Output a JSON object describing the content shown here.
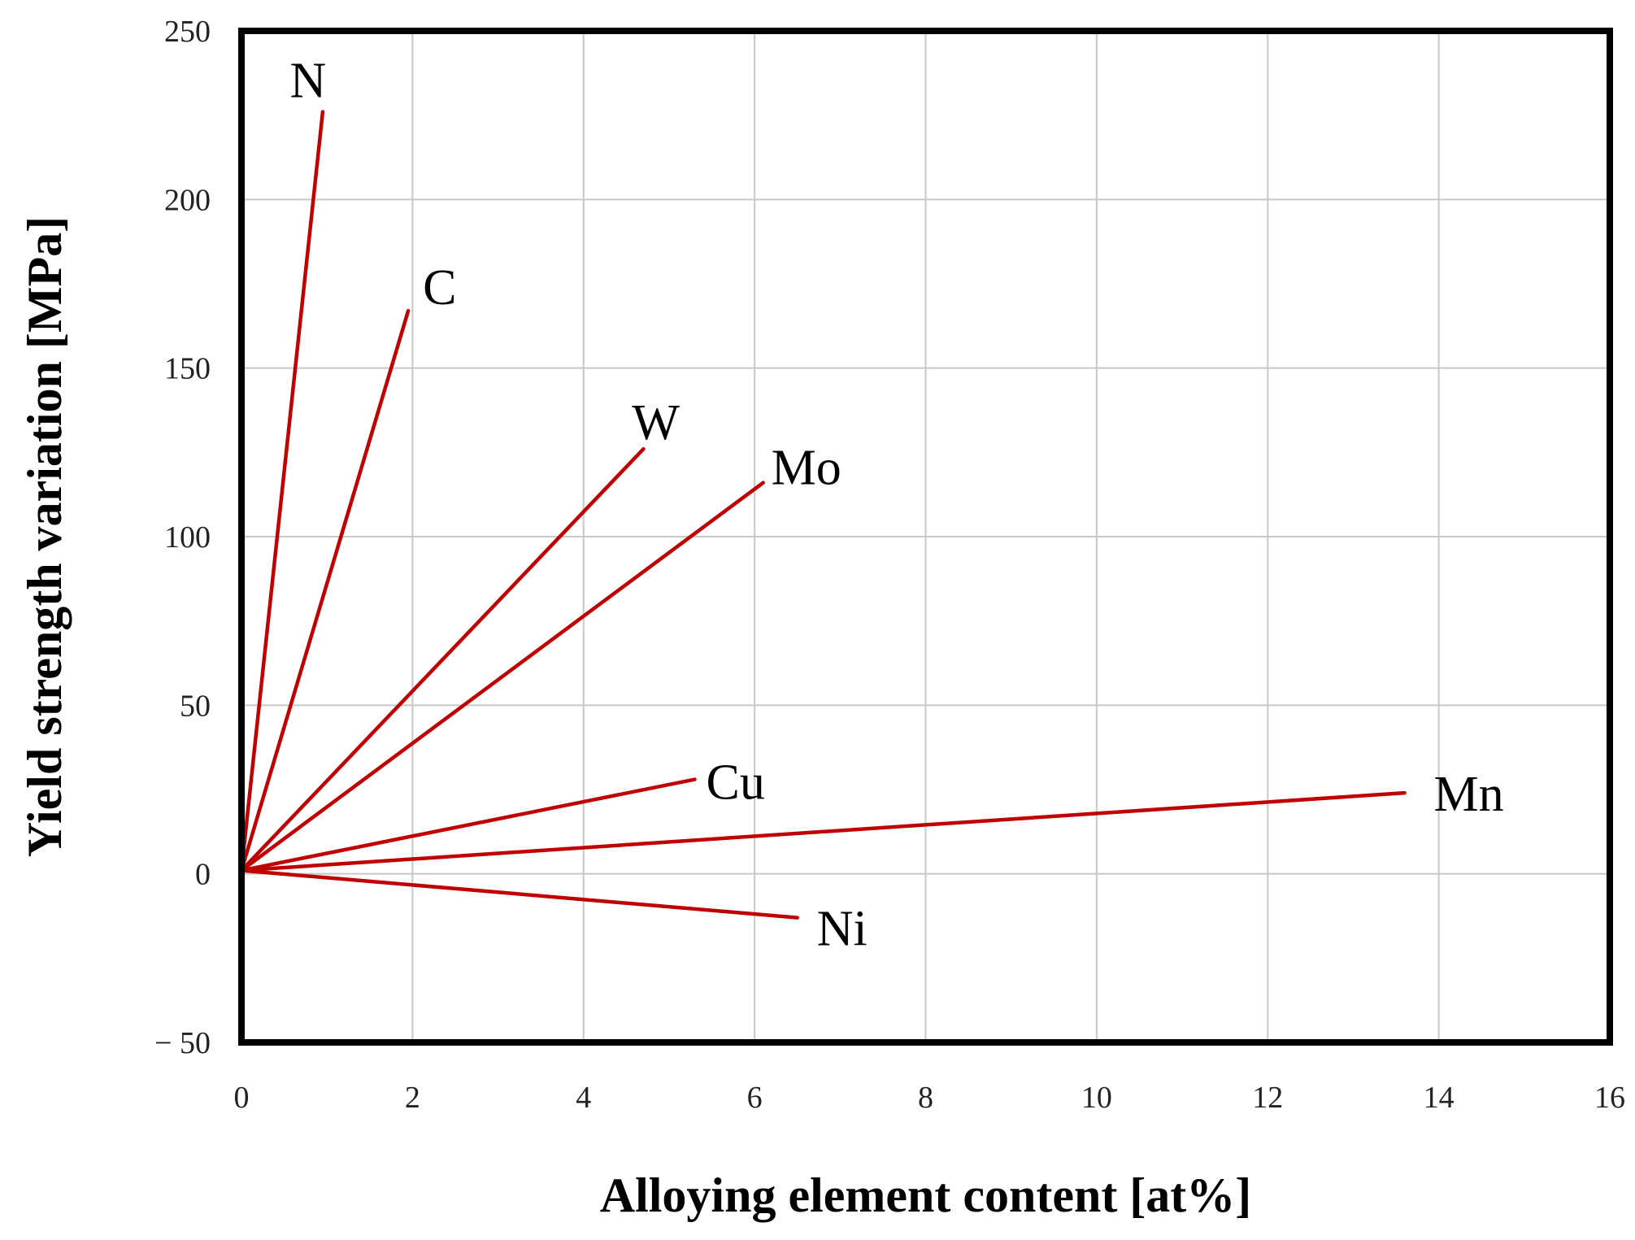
{
  "chart_data": {
    "type": "line",
    "title": "",
    "xlabel": "Alloying element content [at%]",
    "ylabel": "Yield strength variation [MPa]",
    "xlim": [
      0,
      16
    ],
    "ylim": [
      -50,
      250
    ],
    "xticks": [
      0,
      2,
      4,
      6,
      8,
      10,
      12,
      14,
      16
    ],
    "yticks": [
      -50,
      0,
      50,
      100,
      150,
      200,
      250
    ],
    "xtick_labels": [
      "0",
      "2",
      "4",
      "6",
      "8",
      "10",
      "12",
      "14",
      "16"
    ],
    "ytick_labels": [
      "− 50",
      "0",
      "50",
      "100",
      "150",
      "200",
      "250"
    ],
    "grid": true,
    "line_color": "#c00000",
    "series": [
      {
        "name": "N",
        "x": [
          0,
          0.95
        ],
        "y": [
          1,
          226
        ]
      },
      {
        "name": "C",
        "x": [
          0,
          1.95
        ],
        "y": [
          1,
          167
        ]
      },
      {
        "name": "W",
        "x": [
          0,
          4.7
        ],
        "y": [
          1,
          126
        ]
      },
      {
        "name": "Mo",
        "x": [
          0,
          6.1
        ],
        "y": [
          1,
          116
        ]
      },
      {
        "name": "Cu",
        "x": [
          0,
          5.3
        ],
        "y": [
          1,
          28
        ]
      },
      {
        "name": "Mn",
        "x": [
          0,
          13.6
        ],
        "y": [
          1,
          24
        ]
      },
      {
        "name": "Ni",
        "x": [
          0,
          6.5
        ],
        "y": [
          1,
          -13
        ]
      }
    ]
  }
}
